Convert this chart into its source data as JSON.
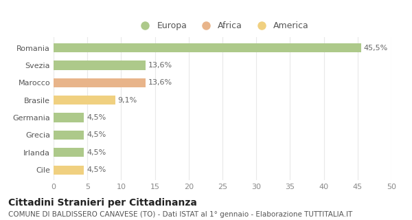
{
  "categories": [
    "Romania",
    "Svezia",
    "Marocco",
    "Brasile",
    "Germania",
    "Grecia",
    "Irlanda",
    "Cile"
  ],
  "values": [
    45.5,
    13.6,
    13.6,
    9.1,
    4.5,
    4.5,
    4.5,
    4.5
  ],
  "labels": [
    "45,5%",
    "13,6%",
    "13,6%",
    "9,1%",
    "4,5%",
    "4,5%",
    "4,5%",
    "4,5%"
  ],
  "colors": [
    "#adc98a",
    "#adc98a",
    "#e8b48a",
    "#f0d080",
    "#adc98a",
    "#adc98a",
    "#adc98a",
    "#f0d080"
  ],
  "legend": [
    {
      "label": "Europa",
      "color": "#adc98a"
    },
    {
      "label": "Africa",
      "color": "#e8b48a"
    },
    {
      "label": "America",
      "color": "#f0d080"
    }
  ],
  "xlim": [
    0,
    50
  ],
  "xticks": [
    0,
    5,
    10,
    15,
    20,
    25,
    30,
    35,
    40,
    45,
    50
  ],
  "title": "Cittadini Stranieri per Cittadinanza",
  "subtitle": "COMUNE DI BALDISSERO CANAVESE (TO) - Dati ISTAT al 1° gennaio - Elaborazione TUTTITALIA.IT",
  "bg_color": "#ffffff",
  "grid_color": "#e8e8e8",
  "bar_height": 0.52,
  "title_fontsize": 10,
  "subtitle_fontsize": 7.5,
  "label_fontsize": 8,
  "tick_fontsize": 8,
  "value_fontsize": 8,
  "legend_fontsize": 9
}
